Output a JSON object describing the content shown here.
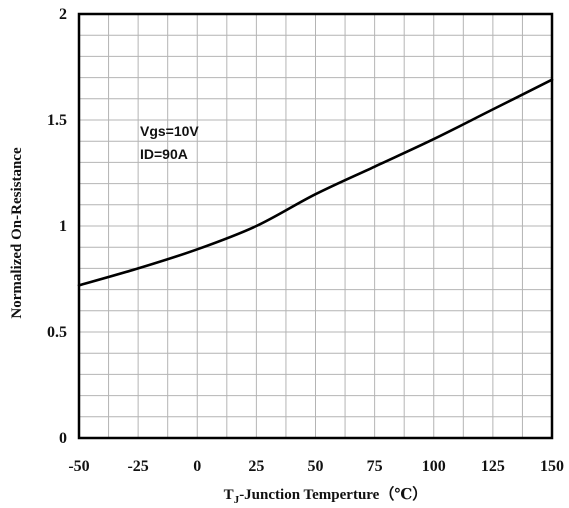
{
  "chart_data": {
    "type": "line",
    "title": "",
    "xlabel_prefix": "T",
    "xlabel_sub": "J",
    "xlabel_rest": "-Junction Temperture（℃）",
    "ylabel": "Normalized On-Resistance",
    "xlim": [
      -50,
      150
    ],
    "ylim": [
      0,
      2
    ],
    "x_ticks": [
      -50,
      -25,
      0,
      25,
      50,
      75,
      100,
      125,
      150
    ],
    "x_tick_labels": [
      "-50",
      "-25",
      "0",
      "25",
      "50",
      "75",
      "100",
      "125",
      "150"
    ],
    "y_ticks": [
      0,
      0.5,
      1,
      1.5,
      2
    ],
    "y_tick_labels": [
      "0",
      "0.5",
      "1",
      "1.5",
      "2"
    ],
    "minor_x_step": 12.5,
    "minor_y_step": 0.1,
    "grid": true,
    "annotations": [
      "Vgs=10V",
      "ID=90A"
    ],
    "series": [
      {
        "x": [
          -50,
          -25,
          0,
          25,
          50,
          75,
          100,
          125,
          150
        ],
        "y": [
          0.72,
          0.8,
          0.89,
          1.0,
          1.15,
          1.28,
          1.41,
          1.55,
          1.69
        ]
      }
    ],
    "colors": {
      "line": "#000000",
      "grid": "#b4b4b4",
      "frame": "#000000"
    }
  }
}
